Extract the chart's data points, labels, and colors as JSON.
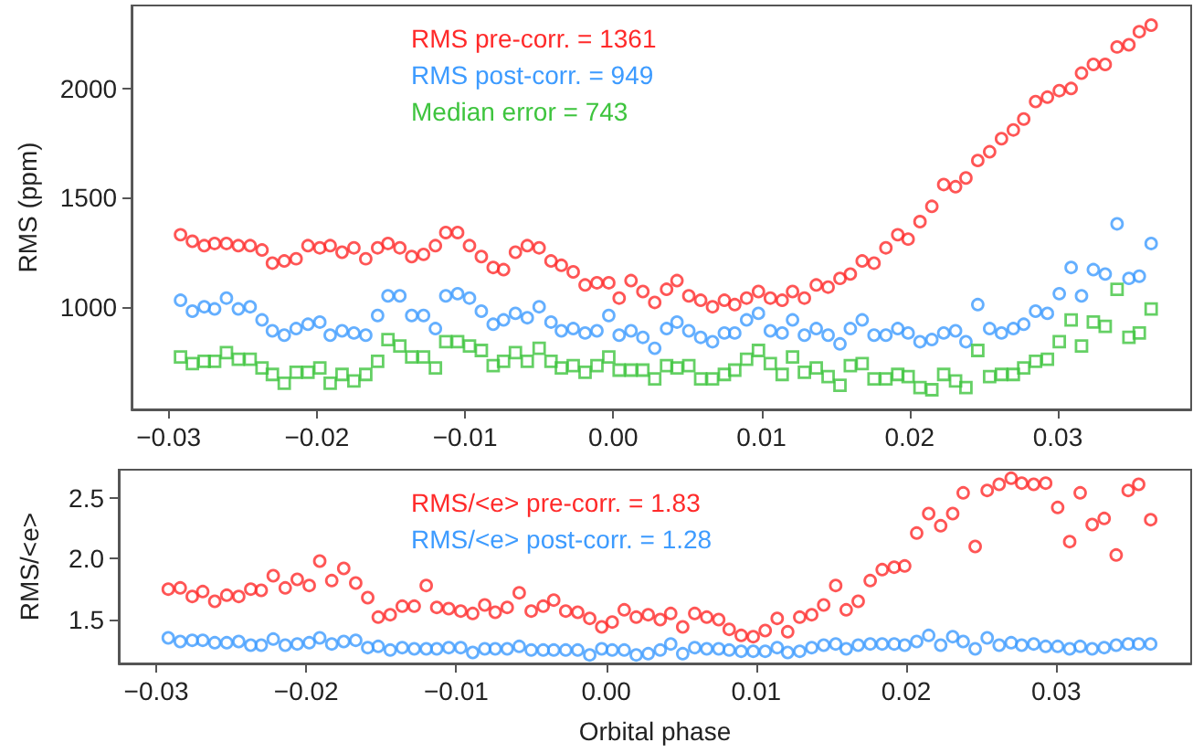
{
  "chart_data": [
    {
      "type": "scatter",
      "ylabel": "RMS (ppm)",
      "legend": "top",
      "grid": false,
      "x": [
        -0.0292,
        -0.0284,
        -0.0276,
        -0.0269,
        -0.0261,
        -0.0253,
        -0.0245,
        -0.0237,
        -0.023,
        -0.0222,
        -0.0214,
        -0.0206,
        -0.0198,
        -0.0191,
        -0.0183,
        -0.0175,
        -0.0167,
        -0.0159,
        -0.0152,
        -0.0144,
        -0.0136,
        -0.0128,
        -0.012,
        -0.0113,
        -0.0105,
        -0.0097,
        -0.0089,
        -0.0081,
        -0.0074,
        -0.0066,
        -0.0058,
        -0.005,
        -0.0042,
        -0.0035,
        -0.0027,
        -0.0019,
        -0.0011,
        -0.0003,
        0.0004,
        0.0012,
        0.002,
        0.0028,
        0.0036,
        0.0043,
        0.0051,
        0.0059,
        0.0067,
        0.0075,
        0.0082,
        0.009,
        0.0098,
        0.0106,
        0.0114,
        0.0121,
        0.0129,
        0.0137,
        0.0145,
        0.0153,
        0.016,
        0.0168,
        0.0176,
        0.0184,
        0.0192,
        0.0199,
        0.0207,
        0.0215,
        0.0223,
        0.0231,
        0.0238,
        0.0246,
        0.0254,
        0.0262,
        0.027,
        0.0277,
        0.0285,
        0.0293,
        0.0301,
        0.0309,
        0.0316,
        0.0324,
        0.0332,
        0.034,
        0.0348,
        0.0355,
        0.0363
      ],
      "xlim": [
        -0.0325,
        0.039
      ],
      "xticks": [
        {
          "value": -0.03,
          "label": "−0.03"
        },
        {
          "value": -0.02,
          "label": "−0.02"
        },
        {
          "value": -0.01,
          "label": "−0.01"
        },
        {
          "value": 0,
          "label": "0.00"
        },
        {
          "value": 0.01,
          "label": "0.01"
        },
        {
          "value": 0.02,
          "label": "0.02"
        },
        {
          "value": 0.03,
          "label": "0.03"
        }
      ],
      "ylim": [
        530,
        2380
      ],
      "yticks": [
        1000,
        1500,
        2000
      ],
      "series": [
        {
          "name": "RMS pre-corr. = 1361",
          "color": "#ff2a2a",
          "marker": "circle",
          "values": [
            1330,
            1300,
            1280,
            1290,
            1290,
            1280,
            1280,
            1260,
            1200,
            1210,
            1220,
            1280,
            1270,
            1280,
            1250,
            1270,
            1220,
            1270,
            1290,
            1270,
            1230,
            1240,
            1280,
            1340,
            1340,
            1280,
            1230,
            1180,
            1170,
            1250,
            1280,
            1270,
            1210,
            1190,
            1160,
            1100,
            1110,
            1110,
            1040,
            1120,
            1070,
            1020,
            1080,
            1120,
            1050,
            1030,
            1000,
            1030,
            1010,
            1040,
            1070,
            1040,
            1030,
            1070,
            1040,
            1100,
            1090,
            1130,
            1150,
            1210,
            1200,
            1270,
            1330,
            1310,
            1390,
            1460,
            1560,
            1550,
            1590,
            1670,
            1710,
            1770,
            1810,
            1860,
            1940,
            1960,
            1990,
            2000,
            2070,
            2110,
            2110,
            2190,
            2200,
            2260,
            2290
          ]
        },
        {
          "name": "RMS post-corr. = 949",
          "color": "#3d9bff",
          "marker": "circle",
          "values": [
            1030,
            980,
            1000,
            990,
            1040,
            990,
            1000,
            940,
            890,
            870,
            900,
            920,
            930,
            870,
            890,
            880,
            870,
            960,
            1050,
            1050,
            960,
            960,
            900,
            1050,
            1060,
            1040,
            980,
            920,
            940,
            970,
            950,
            1000,
            930,
            890,
            900,
            880,
            890,
            960,
            870,
            890,
            860,
            810,
            900,
            930,
            890,
            860,
            840,
            880,
            880,
            940,
            970,
            890,
            880,
            940,
            870,
            900,
            870,
            830,
            900,
            940,
            870,
            870,
            900,
            880,
            840,
            850,
            880,
            890,
            840,
            1010,
            900,
            880,
            900,
            920,
            980,
            970,
            1060,
            1180,
            1050,
            1170,
            1150,
            1380,
            1130,
            1140,
            1290
          ]
        },
        {
          "name": "Median error = 743",
          "color": "#3ec43e",
          "marker": "square",
          "values": [
            770,
            740,
            750,
            750,
            790,
            760,
            760,
            720,
            690,
            650,
            700,
            700,
            720,
            650,
            690,
            660,
            690,
            750,
            850,
            820,
            770,
            770,
            720,
            840,
            840,
            820,
            800,
            730,
            750,
            790,
            750,
            810,
            750,
            720,
            730,
            700,
            730,
            770,
            710,
            710,
            710,
            670,
            730,
            720,
            730,
            670,
            670,
            690,
            710,
            760,
            800,
            740,
            690,
            770,
            700,
            720,
            680,
            640,
            730,
            740,
            670,
            670,
            690,
            680,
            630,
            620,
            690,
            660,
            630,
            800,
            680,
            690,
            690,
            720,
            750,
            760,
            840,
            940,
            820,
            930,
            910,
            1080,
            860,
            880,
            990
          ]
        }
      ]
    },
    {
      "type": "scatter",
      "xlabel": "Orbital phase",
      "ylabel": "RMS/<e>",
      "legend": "top",
      "grid": false,
      "x": [
        -0.0292,
        -0.0284,
        -0.0276,
        -0.0269,
        -0.0261,
        -0.0253,
        -0.0245,
        -0.0237,
        -0.023,
        -0.0222,
        -0.0214,
        -0.0206,
        -0.0198,
        -0.0191,
        -0.0183,
        -0.0175,
        -0.0167,
        -0.0159,
        -0.0152,
        -0.0144,
        -0.0136,
        -0.0128,
        -0.012,
        -0.0113,
        -0.0105,
        -0.0097,
        -0.0089,
        -0.0081,
        -0.0074,
        -0.0066,
        -0.0058,
        -0.005,
        -0.0042,
        -0.0035,
        -0.0027,
        -0.0019,
        -0.0011,
        -0.0003,
        0.0004,
        0.0012,
        0.002,
        0.0028,
        0.0036,
        0.0043,
        0.0051,
        0.0059,
        0.0067,
        0.0075,
        0.0082,
        0.009,
        0.0098,
        0.0106,
        0.0114,
        0.0121,
        0.0129,
        0.0137,
        0.0145,
        0.0153,
        0.016,
        0.0168,
        0.0176,
        0.0184,
        0.0192,
        0.0199,
        0.0207,
        0.0215,
        0.0223,
        0.0231,
        0.0238,
        0.0246,
        0.0254,
        0.0262,
        0.027,
        0.0277,
        0.0285,
        0.0293,
        0.0301,
        0.0309,
        0.0316,
        0.0324,
        0.0332,
        0.034,
        0.0348,
        0.0355,
        0.0363
      ],
      "xlim": [
        -0.0325,
        0.039
      ],
      "xticks": [
        {
          "value": -0.03,
          "label": "−0.03"
        },
        {
          "value": -0.02,
          "label": "−0.02"
        },
        {
          "value": -0.01,
          "label": "−0.01"
        },
        {
          "value": 0,
          "label": "0.00"
        },
        {
          "value": 0.01,
          "label": "0.01"
        },
        {
          "value": 0.02,
          "label": "0.02"
        },
        {
          "value": 0.03,
          "label": "0.03"
        }
      ],
      "ylim": [
        1.14,
        2.73
      ],
      "yticks": [
        1.5,
        {
          "value": 2,
          "label": "2.0"
        },
        2.5
      ],
      "series": [
        {
          "name": "RMS/<e> pre-corr. = 1.83",
          "color": "#ff2a2a",
          "marker": "circle",
          "values": [
            1.75,
            1.76,
            1.69,
            1.73,
            1.65,
            1.7,
            1.69,
            1.75,
            1.74,
            1.86,
            1.76,
            1.83,
            1.78,
            1.98,
            1.82,
            1.92,
            1.8,
            1.68,
            1.52,
            1.54,
            1.61,
            1.61,
            1.78,
            1.6,
            1.59,
            1.57,
            1.55,
            1.62,
            1.56,
            1.6,
            1.72,
            1.57,
            1.61,
            1.66,
            1.57,
            1.56,
            1.51,
            1.44,
            1.48,
            1.58,
            1.52,
            1.54,
            1.5,
            1.55,
            1.44,
            1.55,
            1.52,
            1.5,
            1.42,
            1.37,
            1.36,
            1.41,
            1.51,
            1.4,
            1.52,
            1.54,
            1.62,
            1.78,
            1.58,
            1.65,
            1.82,
            1.91,
            1.93,
            1.94,
            2.21,
            2.37,
            2.27,
            2.37,
            2.54,
            2.1,
            2.56,
            2.61,
            2.66,
            2.62,
            2.61,
            2.62,
            2.42,
            2.14,
            2.54,
            2.28,
            2.33,
            2.03,
            2.56,
            2.61,
            2.32
          ]
        },
        {
          "name": "RMS/<e> post-corr. = 1.28",
          "color": "#3d9bff",
          "marker": "circle",
          "values": [
            1.35,
            1.32,
            1.33,
            1.33,
            1.31,
            1.31,
            1.32,
            1.29,
            1.29,
            1.34,
            1.29,
            1.3,
            1.31,
            1.35,
            1.3,
            1.32,
            1.33,
            1.27,
            1.28,
            1.25,
            1.27,
            1.26,
            1.26,
            1.26,
            1.27,
            1.27,
            1.23,
            1.26,
            1.26,
            1.26,
            1.28,
            1.25,
            1.25,
            1.25,
            1.25,
            1.25,
            1.21,
            1.26,
            1.25,
            1.25,
            1.21,
            1.22,
            1.25,
            1.3,
            1.22,
            1.27,
            1.26,
            1.26,
            1.25,
            1.24,
            1.24,
            1.24,
            1.27,
            1.23,
            1.24,
            1.27,
            1.29,
            1.3,
            1.26,
            1.29,
            1.3,
            1.3,
            1.3,
            1.29,
            1.32,
            1.37,
            1.29,
            1.36,
            1.32,
            1.26,
            1.35,
            1.29,
            1.31,
            1.29,
            1.3,
            1.28,
            1.28,
            1.26,
            1.28,
            1.26,
            1.27,
            1.29,
            1.3,
            1.3,
            1.3
          ]
        }
      ]
    }
  ]
}
